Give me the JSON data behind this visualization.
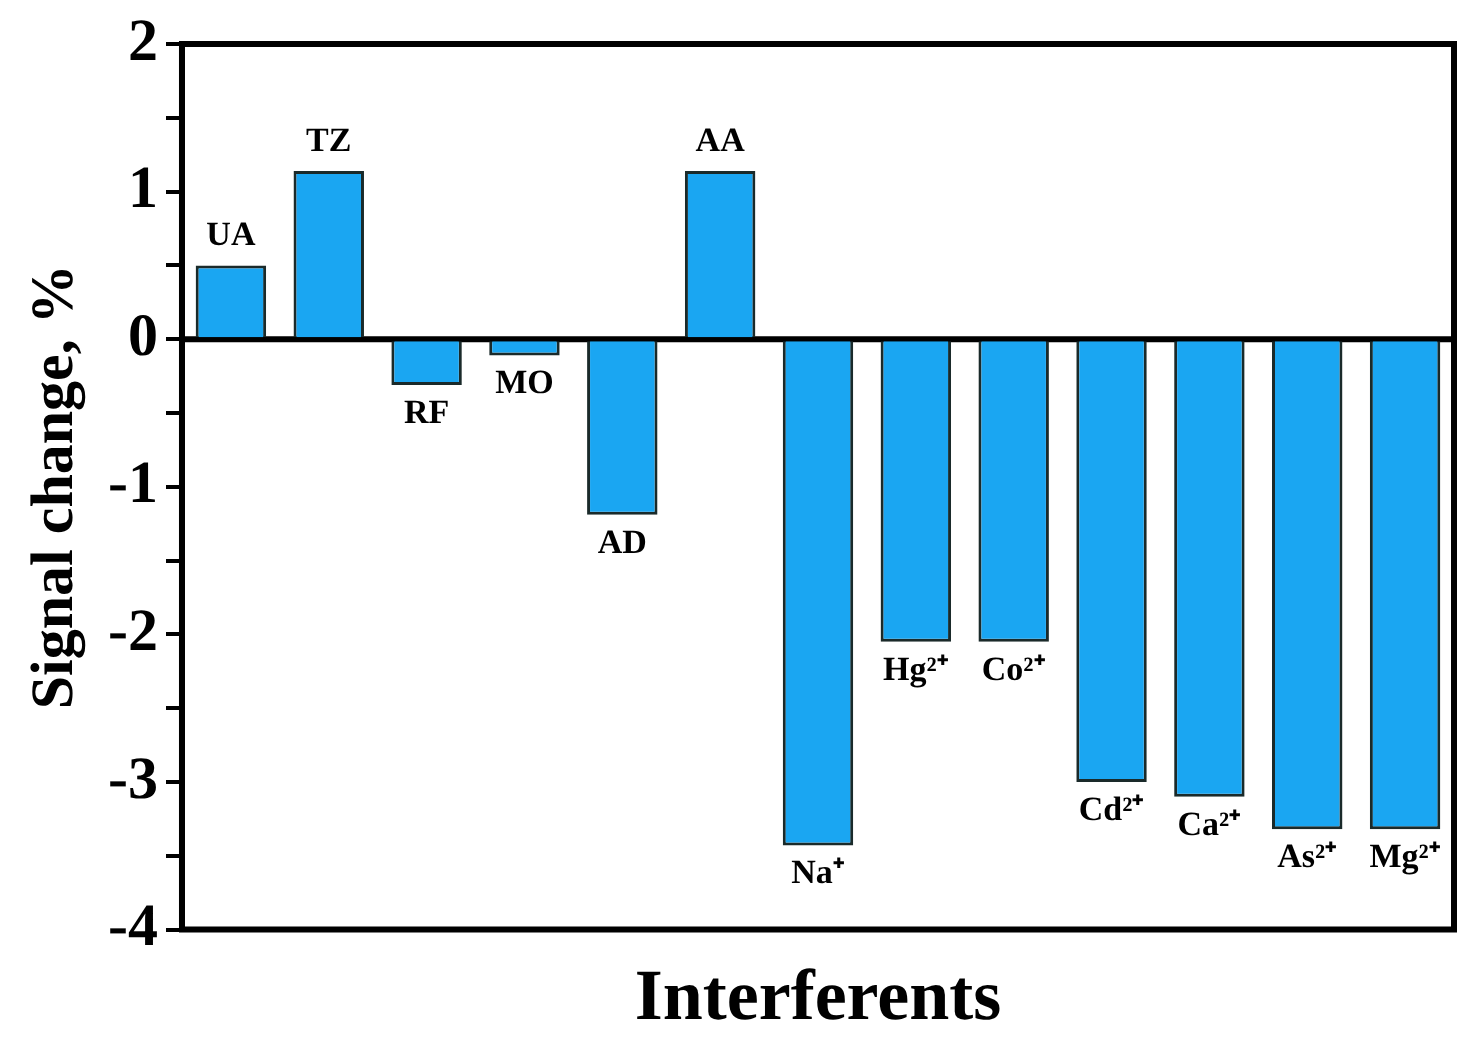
{
  "chart_data": {
    "type": "bar",
    "xlabel": "Interferents",
    "ylabel": "Signal change, %",
    "categories": [
      "UA",
      "TZ",
      "RF",
      "MO",
      "AD",
      "AA",
      "Na⁺",
      "Hg²⁺",
      "Co²⁺",
      "Cd²⁺",
      "Ca²⁺",
      "As²⁺",
      "Mg²⁺"
    ],
    "values": [
      0.5,
      1.14,
      -0.31,
      -0.11,
      -1.19,
      1.14,
      -3.43,
      -2.05,
      -2.05,
      -3.0,
      -3.1,
      -3.32,
      -3.32
    ],
    "color": "#1aa6f2",
    "ylim": [
      -4,
      2
    ],
    "yticks": [
      -4,
      {
        "value": -3.5,
        "label": null
      },
      -3,
      {
        "value": -2.5,
        "label": null
      },
      -2,
      {
        "value": -1.5,
        "label": null
      },
      -1,
      {
        "value": -0.5,
        "label": null
      },
      0,
      {
        "value": 0.5,
        "label": null
      },
      1,
      {
        "value": 1.5,
        "label": null
      },
      2
    ],
    "ref_lines": [
      {
        "axis": "y",
        "value": 0,
        "color": "#000000"
      }
    ],
    "legend": false,
    "tick_labels": "y"
  }
}
